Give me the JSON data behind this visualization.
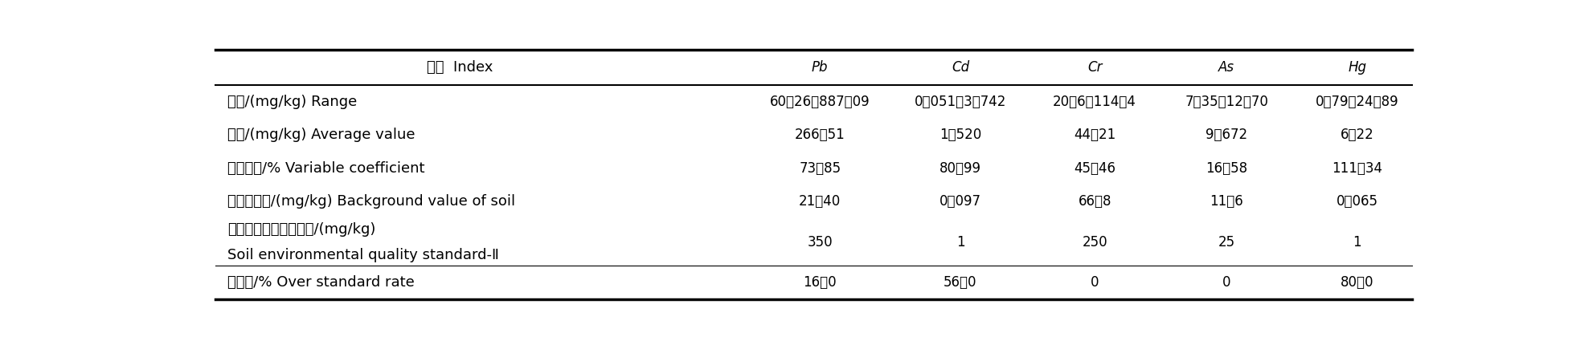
{
  "col_headers": [
    "项目  Index",
    "Pb",
    "Cd",
    "Cr",
    "As",
    "Hg"
  ],
  "rows": [
    {
      "label_cn": "范围/(mg/kg)",
      "label_en": " Range",
      "values": [
        "60．26～887．09",
        "0．051～3．742",
        "20．6～114．4",
        "7．35～12．70",
        "0．79～24．89"
      ],
      "two_line": false
    },
    {
      "label_cn": "均值/(mg/kg)",
      "label_en": " Average value",
      "values": [
        "266．51",
        "1．520",
        "44．21",
        "9．672",
        "6．22"
      ],
      "two_line": false
    },
    {
      "label_cn": "变异系数/%",
      "label_en": " Variable coefficient",
      "values": [
        "73．85",
        "80．99",
        "45．46",
        "16．58",
        "111．34"
      ],
      "two_line": false
    },
    {
      "label_cn": "土壤背景值/(mg/kg)",
      "label_en": " Background value of soil",
      "values": [
        "21．40",
        "0．097",
        "66．8",
        "11．6",
        "0．065"
      ],
      "two_line": false
    },
    {
      "label_cn": "土壤环境质量二级标准/(mg/kg)",
      "label_en": "Soil environmental quality standard-Ⅱ",
      "values": [
        "350",
        "1",
        "250",
        "25",
        "1"
      ],
      "two_line": true
    },
    {
      "label_cn": "超标率/%",
      "label_en": " Over standard rate",
      "values": [
        "16．0",
        "56．0",
        "0",
        "0",
        "80．0"
      ],
      "two_line": false
    }
  ],
  "bg_color": "#ffffff",
  "line_color": "#000000",
  "text_color": "#000000",
  "font_size": 13,
  "header_font_size": 13,
  "value_font_size": 12
}
